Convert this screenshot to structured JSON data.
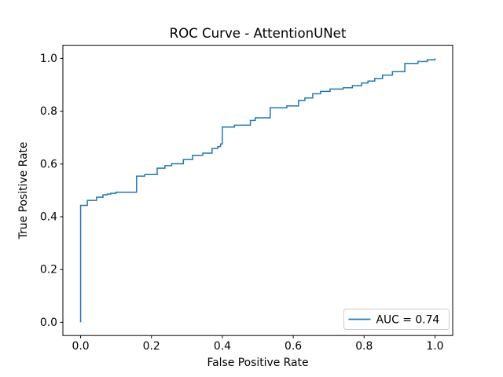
{
  "figure": {
    "background": "#ffffff"
  },
  "chart_data": {
    "type": "line",
    "subtype": "roc-step-curve",
    "title": "ROC Curve - AttentionUNet",
    "xlabel": "False Positive Rate",
    "ylabel": "True Positive Rate",
    "xlim": [
      -0.05,
      1.05
    ],
    "ylim": [
      -0.05,
      1.05
    ],
    "xticks": [
      0.0,
      0.2,
      0.4,
      0.6,
      0.8,
      1.0
    ],
    "yticks": [
      0.0,
      0.2,
      0.4,
      0.6,
      0.8,
      1.0
    ],
    "grid": false,
    "legend": {
      "position": "lower right",
      "entries": [
        {
          "label": "AUC = 0.74",
          "color": "#1f77b4"
        }
      ]
    },
    "series": [
      {
        "name": "AUC = 0.74",
        "color": "#1f77b4",
        "linewidth": 1.5,
        "auc": 0.74,
        "points": [
          [
            0.0,
            0.0
          ],
          [
            0.0,
            0.443
          ],
          [
            0.019,
            0.443
          ],
          [
            0.019,
            0.462
          ],
          [
            0.045,
            0.462
          ],
          [
            0.045,
            0.474
          ],
          [
            0.063,
            0.474
          ],
          [
            0.063,
            0.483
          ],
          [
            0.075,
            0.483
          ],
          [
            0.075,
            0.486
          ],
          [
            0.085,
            0.486
          ],
          [
            0.085,
            0.489
          ],
          [
            0.1,
            0.489
          ],
          [
            0.1,
            0.493
          ],
          [
            0.158,
            0.493
          ],
          [
            0.158,
            0.554
          ],
          [
            0.181,
            0.554
          ],
          [
            0.181,
            0.56
          ],
          [
            0.216,
            0.56
          ],
          [
            0.216,
            0.584
          ],
          [
            0.238,
            0.584
          ],
          [
            0.238,
            0.594
          ],
          [
            0.257,
            0.594
          ],
          [
            0.257,
            0.601
          ],
          [
            0.29,
            0.601
          ],
          [
            0.29,
            0.617
          ],
          [
            0.316,
            0.617
          ],
          [
            0.316,
            0.633
          ],
          [
            0.345,
            0.633
          ],
          [
            0.345,
            0.641
          ],
          [
            0.371,
            0.641
          ],
          [
            0.371,
            0.659
          ],
          [
            0.387,
            0.659
          ],
          [
            0.387,
            0.666
          ],
          [
            0.395,
            0.666
          ],
          [
            0.395,
            0.676
          ],
          [
            0.4,
            0.676
          ],
          [
            0.4,
            0.74
          ],
          [
            0.434,
            0.74
          ],
          [
            0.434,
            0.747
          ],
          [
            0.479,
            0.747
          ],
          [
            0.479,
            0.765
          ],
          [
            0.493,
            0.765
          ],
          [
            0.493,
            0.775
          ],
          [
            0.535,
            0.775
          ],
          [
            0.535,
            0.813
          ],
          [
            0.582,
            0.813
          ],
          [
            0.582,
            0.82
          ],
          [
            0.615,
            0.82
          ],
          [
            0.615,
            0.841
          ],
          [
            0.633,
            0.841
          ],
          [
            0.633,
            0.85
          ],
          [
            0.655,
            0.85
          ],
          [
            0.655,
            0.866
          ],
          [
            0.677,
            0.866
          ],
          [
            0.677,
            0.875
          ],
          [
            0.704,
            0.875
          ],
          [
            0.704,
            0.884
          ],
          [
            0.741,
            0.884
          ],
          [
            0.741,
            0.889
          ],
          [
            0.767,
            0.889
          ],
          [
            0.767,
            0.897
          ],
          [
            0.793,
            0.897
          ],
          [
            0.793,
            0.907
          ],
          [
            0.811,
            0.907
          ],
          [
            0.811,
            0.914
          ],
          [
            0.83,
            0.914
          ],
          [
            0.83,
            0.924
          ],
          [
            0.852,
            0.924
          ],
          [
            0.852,
            0.937
          ],
          [
            0.88,
            0.937
          ],
          [
            0.88,
            0.95
          ],
          [
            0.915,
            0.95
          ],
          [
            0.915,
            0.981
          ],
          [
            0.952,
            0.981
          ],
          [
            0.952,
            0.988
          ],
          [
            0.978,
            0.988
          ],
          [
            0.978,
            0.995
          ],
          [
            1.0,
            0.995
          ],
          [
            1.0,
            1.0
          ]
        ]
      }
    ],
    "axes_style": {
      "spine_color": "#000000",
      "tick_color": "#000000",
      "legend_edge_color": "#cccccc",
      "legend_face_color": "#ffffff"
    }
  }
}
